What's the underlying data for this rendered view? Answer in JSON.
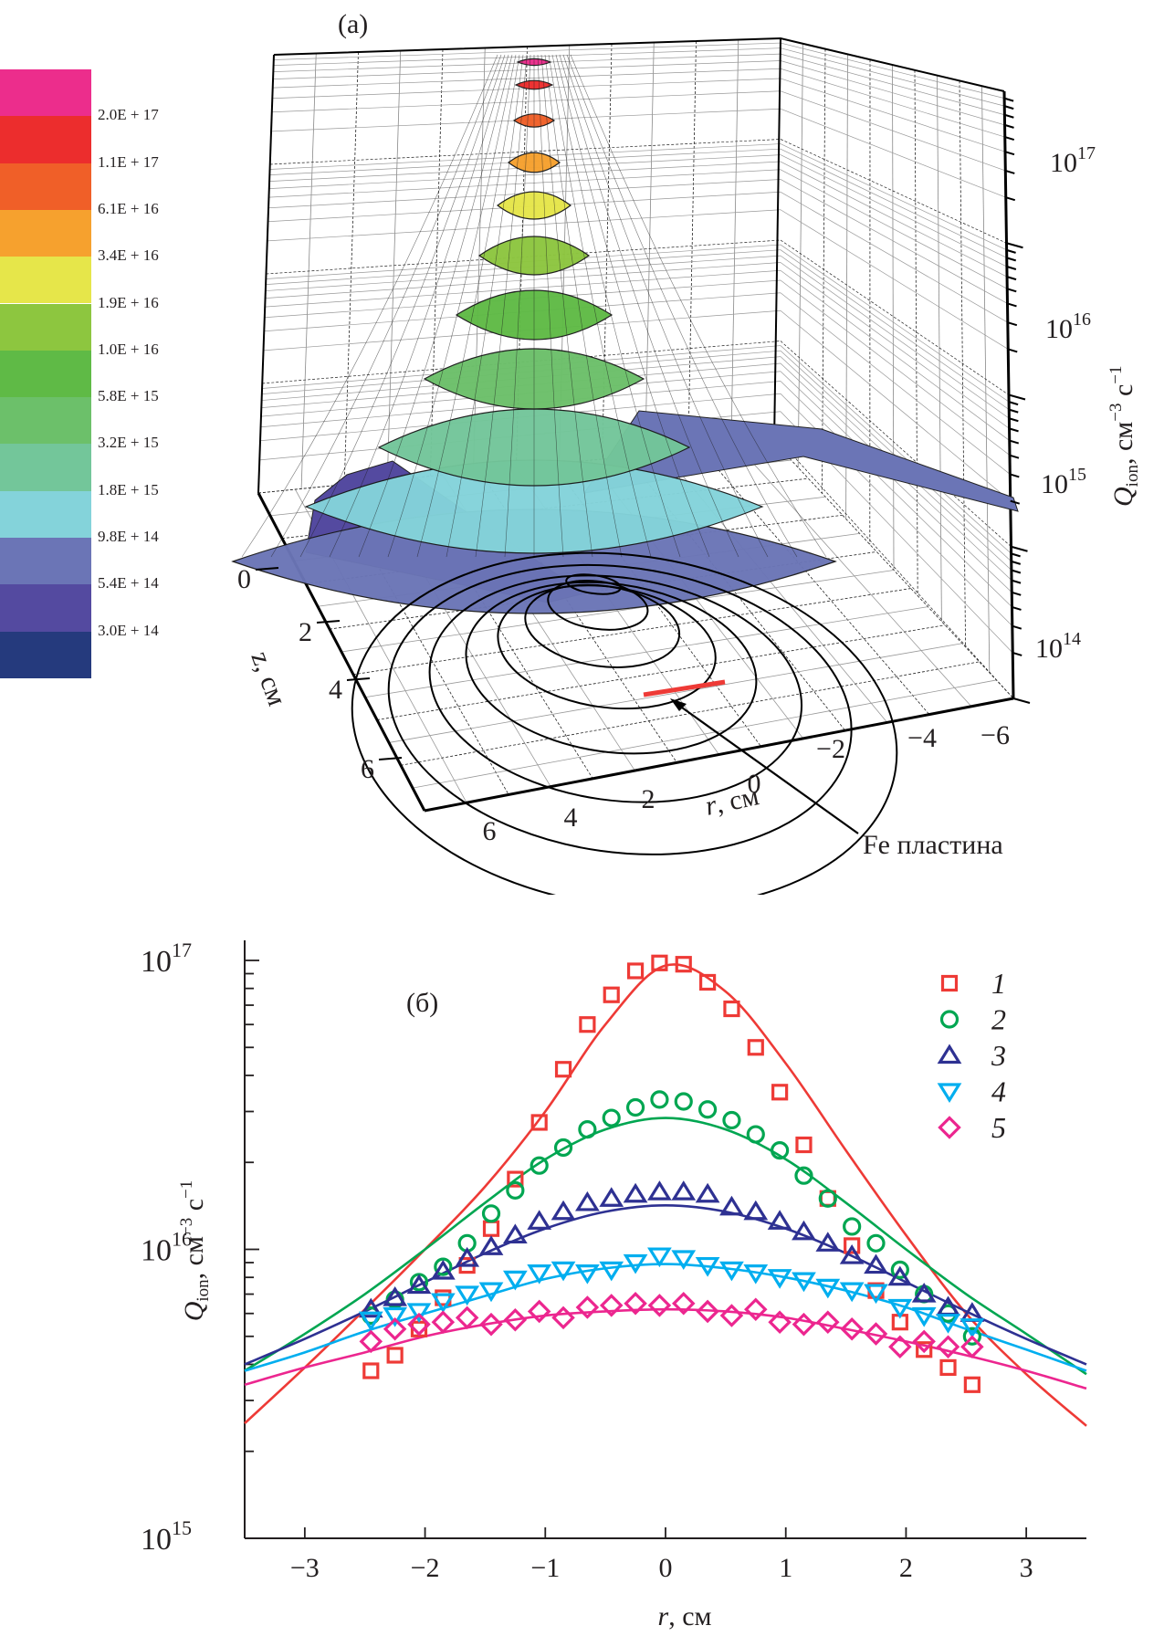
{
  "panel_a": {
    "label": "(a)",
    "colorbar": {
      "levels": [
        {
          "label": "",
          "color": "#ec2d8c"
        },
        {
          "label": "2.0E + 17",
          "color": "#ec2d2d"
        },
        {
          "label": "1.1E + 17",
          "color": "#f05f28"
        },
        {
          "label": "6.1E + 16",
          "color": "#f6a12e"
        },
        {
          "label": "3.4E + 16",
          "color": "#e6e64a"
        },
        {
          "label": "1.9E + 16",
          "color": "#8dc63f"
        },
        {
          "label": "1.0E + 16",
          "color": "#5fba46"
        },
        {
          "label": "5.8E + 15",
          "color": "#6cc06a"
        },
        {
          "label": "3.2E + 15",
          "color": "#73c69a"
        },
        {
          "label": "1.8E + 15",
          "color": "#84d3da"
        },
        {
          "label": "9.8E + 14",
          "color": "#6b75b6"
        },
        {
          "label": "5.4E + 14",
          "color": "#544aa0"
        },
        {
          "label": "3.0E + 14",
          "color": "#253a7d"
        }
      ]
    },
    "z_axis_label": "Q",
    "z_axis_label_sub": "ion",
    "z_axis_label_unit": ", см",
    "z_axis_label_exp1": "−3",
    "z_axis_label_c": " с",
    "z_axis_label_exp2": "−1",
    "z_ticks": [
      {
        "base": "10",
        "exp": "17"
      },
      {
        "base": "10",
        "exp": "16"
      },
      {
        "base": "10",
        "exp": "15"
      },
      {
        "base": "10",
        "exp": "14"
      }
    ],
    "depth_axis_label": "z, см",
    "depth_ticks": [
      "0",
      "2",
      "4",
      "6"
    ],
    "r_axis_label_italic": "r",
    "r_axis_label_rest": ", см",
    "r_ticks": [
      "6",
      "4",
      "2",
      "0",
      "−2",
      "−4",
      "−6"
    ],
    "annotation": "Fe пластина",
    "plate_color": "#ee3a36"
  },
  "chart_data": {
    "type": "scatter",
    "panel_label": "(б)",
    "title": "",
    "xlabel": "r, см",
    "ylabel": "Q_ion, см^-3 с^-1",
    "xlim": [
      -3.5,
      3.5
    ],
    "ylim": [
      1000000000000000.0,
      1.2e+17
    ],
    "yscale": "log",
    "x_ticks": [
      "−3",
      "−2",
      "−1",
      "0",
      "1",
      "2",
      "3"
    ],
    "x_tick_values": [
      -3,
      -2,
      -1,
      0,
      1,
      2,
      3
    ],
    "y_ticks": [
      {
        "value": 1000000000000000.0,
        "base": "10",
        "exp": "15"
      },
      {
        "value": 1e+16,
        "base": "10",
        "exp": "16"
      },
      {
        "value": 1e+17,
        "base": "10",
        "exp": "17"
      }
    ],
    "grid": false,
    "legend_position": "top-right",
    "series": [
      {
        "name": "1",
        "marker": "square",
        "color": "#ee3a36",
        "points": [
          [
            -2.45,
            3800000000000000.0
          ],
          [
            -2.25,
            4300000000000000.0
          ],
          [
            -2.05,
            5300000000000000.0
          ],
          [
            -1.85,
            6800000000000000.0
          ],
          [
            -1.65,
            8800000000000000.0
          ],
          [
            -1.45,
            1.18e+16
          ],
          [
            -1.25,
            1.75e+16
          ],
          [
            -1.05,
            2.75e+16
          ],
          [
            -0.85,
            4.2e+16
          ],
          [
            -0.65,
            6e+16
          ],
          [
            -0.45,
            7.6e+16
          ],
          [
            -0.25,
            9.2e+16
          ],
          [
            -0.05,
            9.8e+16
          ],
          [
            0.15,
            9.7e+16
          ],
          [
            0.35,
            8.4e+16
          ],
          [
            0.55,
            6.8e+16
          ],
          [
            0.75,
            5e+16
          ],
          [
            0.95,
            3.5e+16
          ],
          [
            1.15,
            2.3e+16
          ],
          [
            1.35,
            1.5e+16
          ],
          [
            1.55,
            1.03e+16
          ],
          [
            1.75,
            7200000000000000.0
          ],
          [
            1.95,
            5600000000000000.0
          ],
          [
            2.15,
            4500000000000000.0
          ],
          [
            2.35,
            3900000000000000.0
          ],
          [
            2.55,
            3400000000000000.0
          ]
        ],
        "fit": [
          [
            -3.5,
            2500000000000000.0
          ],
          [
            -3.0,
            3900000000000000.0
          ],
          [
            -2.5,
            6200000000000000.0
          ],
          [
            -2.0,
            1e+16
          ],
          [
            -1.5,
            1.65e+16
          ],
          [
            -1.0,
            3e+16
          ],
          [
            -0.5,
            6e+16
          ],
          [
            0.0,
            9.6e+16
          ],
          [
            0.5,
            7.8e+16
          ],
          [
            1.0,
            4.4e+16
          ],
          [
            1.5,
            2.2e+16
          ],
          [
            2.0,
            1.12e+16
          ],
          [
            2.5,
            6000000000000000.0
          ],
          [
            3.0,
            3700000000000000.0
          ],
          [
            3.5,
            2450000000000000.0
          ]
        ]
      },
      {
        "name": "2",
        "marker": "circle",
        "color": "#00a651",
        "points": [
          [
            -2.45,
            5900000000000000.0
          ],
          [
            -2.25,
            6700000000000000.0
          ],
          [
            -2.05,
            7700000000000000.0
          ],
          [
            -1.85,
            8700000000000000.0
          ],
          [
            -1.65,
            1.05e+16
          ],
          [
            -1.45,
            1.33e+16
          ],
          [
            -1.25,
            1.6e+16
          ],
          [
            -1.05,
            1.95e+16
          ],
          [
            -0.85,
            2.25e+16
          ],
          [
            -0.65,
            2.6e+16
          ],
          [
            -0.45,
            2.85e+16
          ],
          [
            -0.25,
            3.1e+16
          ],
          [
            -0.05,
            3.3e+16
          ],
          [
            0.15,
            3.25e+16
          ],
          [
            0.35,
            3.05e+16
          ],
          [
            0.55,
            2.8e+16
          ],
          [
            0.75,
            2.5e+16
          ],
          [
            0.95,
            2.2e+16
          ],
          [
            1.15,
            1.8e+16
          ],
          [
            1.35,
            1.5e+16
          ],
          [
            1.55,
            1.2e+16
          ],
          [
            1.75,
            1.05e+16
          ],
          [
            1.95,
            8500000000000000.0
          ],
          [
            2.15,
            7000000000000000.0
          ],
          [
            2.35,
            6000000000000000.0
          ],
          [
            2.55,
            5000000000000000.0
          ]
        ],
        "fit": [
          [
            -3.5,
            3800000000000000.0
          ],
          [
            -3.0,
            5100000000000000.0
          ],
          [
            -2.5,
            7000000000000000.0
          ],
          [
            -2.0,
            1e+16
          ],
          [
            -1.5,
            1.45e+16
          ],
          [
            -1.0,
            2.05e+16
          ],
          [
            -0.5,
            2.6e+16
          ],
          [
            0.0,
            2.85e+16
          ],
          [
            0.5,
            2.6e+16
          ],
          [
            1.0,
            2.05e+16
          ],
          [
            1.5,
            1.45e+16
          ],
          [
            2.0,
            1e+16
          ],
          [
            2.5,
            7000000000000000.0
          ],
          [
            3.0,
            5100000000000000.0
          ],
          [
            3.5,
            3700000000000000.0
          ]
        ]
      },
      {
        "name": "3",
        "marker": "triangle-up",
        "color": "#2e3192",
        "points": [
          [
            -2.45,
            6200000000000000.0
          ],
          [
            -2.25,
            6800000000000000.0
          ],
          [
            -2.05,
            7500000000000000.0
          ],
          [
            -1.85,
            8400000000000000.0
          ],
          [
            -1.65,
            9300000000000000.0
          ],
          [
            -1.45,
            1.02e+16
          ],
          [
            -1.25,
            1.12e+16
          ],
          [
            -1.05,
            1.25e+16
          ],
          [
            -0.85,
            1.35e+16
          ],
          [
            -0.65,
            1.45e+16
          ],
          [
            -0.45,
            1.5e+16
          ],
          [
            -0.25,
            1.55e+16
          ],
          [
            -0.05,
            1.58e+16
          ],
          [
            0.15,
            1.58e+16
          ],
          [
            0.35,
            1.55e+16
          ],
          [
            0.55,
            1.4e+16
          ],
          [
            0.75,
            1.35e+16
          ],
          [
            0.95,
            1.25e+16
          ],
          [
            1.15,
            1.15e+16
          ],
          [
            1.35,
            1.05e+16
          ],
          [
            1.55,
            9500000000000000.0
          ],
          [
            1.75,
            8800000000000000.0
          ],
          [
            1.95,
            8000000000000000.0
          ],
          [
            2.15,
            7000000000000000.0
          ],
          [
            2.35,
            6300000000000000.0
          ],
          [
            2.55,
            6000000000000000.0
          ]
        ],
        "fit": [
          [
            -3.5,
            4000000000000000.0
          ],
          [
            -3.0,
            4900000000000000.0
          ],
          [
            -2.5,
            6100000000000000.0
          ],
          [
            -2.0,
            7700000000000000.0
          ],
          [
            -1.5,
            9700000000000000.0
          ],
          [
            -1.0,
            1.18e+16
          ],
          [
            -0.5,
            1.35e+16
          ],
          [
            0.0,
            1.42e+16
          ],
          [
            0.5,
            1.35e+16
          ],
          [
            1.0,
            1.18e+16
          ],
          [
            1.5,
            9700000000000000.0
          ],
          [
            2.0,
            7700000000000000.0
          ],
          [
            2.5,
            6100000000000000.0
          ],
          [
            3.0,
            4900000000000000.0
          ],
          [
            3.5,
            4000000000000000.0
          ]
        ]
      },
      {
        "name": "4",
        "marker": "triangle-down",
        "color": "#00aeef",
        "points": [
          [
            -2.45,
            5700000000000000.0
          ],
          [
            -2.25,
            5900000000000000.0
          ],
          [
            -2.05,
            6100000000000000.0
          ],
          [
            -1.85,
            6600000000000000.0
          ],
          [
            -1.65,
            7000000000000000.0
          ],
          [
            -1.45,
            7200000000000000.0
          ],
          [
            -1.25,
            7900000000000000.0
          ],
          [
            -1.05,
            8300000000000000.0
          ],
          [
            -0.85,
            8500000000000000.0
          ],
          [
            -0.65,
            8300000000000000.0
          ],
          [
            -0.45,
            8500000000000000.0
          ],
          [
            -0.25,
            9000000000000000.0
          ],
          [
            -0.05,
            9500000000000000.0
          ],
          [
            0.15,
            9300000000000000.0
          ],
          [
            0.35,
            8800000000000000.0
          ],
          [
            0.55,
            8500000000000000.0
          ],
          [
            0.75,
            8300000000000000.0
          ],
          [
            0.95,
            8000000000000000.0
          ],
          [
            1.15,
            7800000000000000.0
          ],
          [
            1.35,
            7400000000000000.0
          ],
          [
            1.55,
            7200000000000000.0
          ],
          [
            1.75,
            7100000000000000.0
          ],
          [
            1.95,
            6300000000000000.0
          ],
          [
            2.15,
            5900000000000000.0
          ],
          [
            2.35,
            5600000000000000.0
          ],
          [
            2.55,
            5400000000000000.0
          ]
        ],
        "fit": [
          [
            -3.5,
            3800000000000000.0
          ],
          [
            -3.0,
            4400000000000000.0
          ],
          [
            -2.5,
            5200000000000000.0
          ],
          [
            -2.0,
            6000000000000000.0
          ],
          [
            -1.5,
            6900000000000000.0
          ],
          [
            -1.0,
            7900000000000000.0
          ],
          [
            -0.5,
            8600000000000000.0
          ],
          [
            0.0,
            8900000000000000.0
          ],
          [
            0.5,
            8600000000000000.0
          ],
          [
            1.0,
            8000000000000000.0
          ],
          [
            1.5,
            7200000000000000.0
          ],
          [
            2.0,
            6300000000000000.0
          ],
          [
            2.5,
            5300000000000000.0
          ],
          [
            3.0,
            4500000000000000.0
          ],
          [
            3.5,
            3800000000000000.0
          ]
        ]
      },
      {
        "name": "5",
        "marker": "diamond",
        "color": "#ec268f",
        "points": [
          [
            -2.45,
            4800000000000000.0
          ],
          [
            -2.25,
            5300000000000000.0
          ],
          [
            -2.05,
            5500000000000000.0
          ],
          [
            -1.85,
            5600000000000000.0
          ],
          [
            -1.65,
            5800000000000000.0
          ],
          [
            -1.45,
            5500000000000000.0
          ],
          [
            -1.25,
            5700000000000000.0
          ],
          [
            -1.05,
            6100000000000000.0
          ],
          [
            -0.85,
            5800000000000000.0
          ],
          [
            -0.65,
            6300000000000000.0
          ],
          [
            -0.45,
            6400000000000000.0
          ],
          [
            -0.25,
            6500000000000000.0
          ],
          [
            -0.05,
            6400000000000000.0
          ],
          [
            0.15,
            6500000000000000.0
          ],
          [
            0.35,
            6100000000000000.0
          ],
          [
            0.55,
            5900000000000000.0
          ],
          [
            0.75,
            6200000000000000.0
          ],
          [
            0.95,
            5600000000000000.0
          ],
          [
            1.15,
            5500000000000000.0
          ],
          [
            1.35,
            5600000000000000.0
          ],
          [
            1.55,
            5300000000000000.0
          ],
          [
            1.75,
            5100000000000000.0
          ],
          [
            1.95,
            4600000000000000.0
          ],
          [
            2.15,
            4800000000000000.0
          ],
          [
            2.35,
            4600000000000000.0
          ],
          [
            2.55,
            4600000000000000.0
          ]
        ],
        "fit": [
          [
            -3.5,
            3400000000000000.0
          ],
          [
            -3.0,
            3900000000000000.0
          ],
          [
            -2.5,
            4400000000000000.0
          ],
          [
            -2.0,
            5000000000000000.0
          ],
          [
            -1.5,
            5500000000000000.0
          ],
          [
            -1.0,
            5900000000000000.0
          ],
          [
            -0.5,
            6100000000000000.0
          ],
          [
            0.0,
            6200000000000000.0
          ],
          [
            0.5,
            6100000000000000.0
          ],
          [
            1.0,
            5800000000000000.0
          ],
          [
            1.5,
            5300000000000000.0
          ],
          [
            2.0,
            4800000000000000.0
          ],
          [
            2.5,
            4300000000000000.0
          ],
          [
            3.0,
            3800000000000000.0
          ],
          [
            3.5,
            3300000000000000.0
          ]
        ]
      }
    ]
  }
}
